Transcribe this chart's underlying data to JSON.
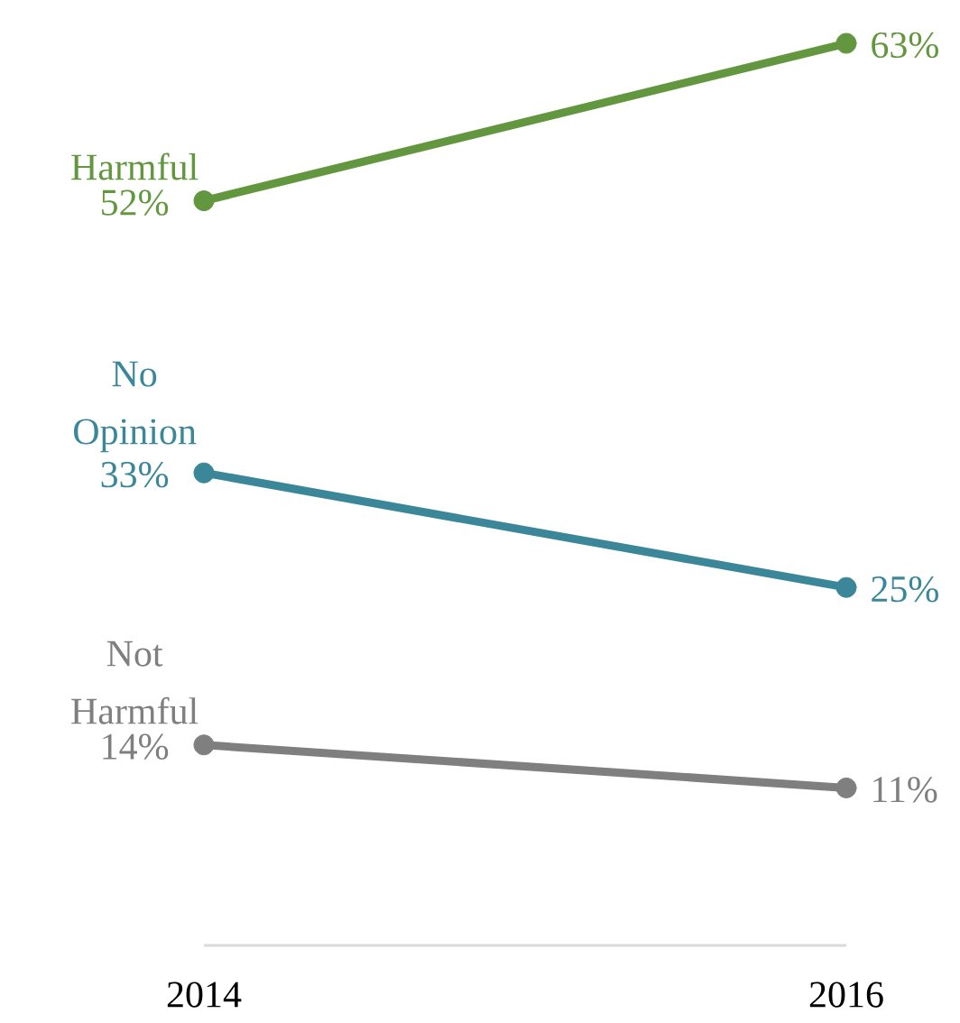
{
  "chart_data": {
    "type": "line",
    "categories": [
      "2014",
      "2016"
    ],
    "series": [
      {
        "name": "Harmful",
        "color": "#63973f",
        "values": [
          52,
          63
        ],
        "value_labels": [
          "52%",
          "63%"
        ]
      },
      {
        "name": "No Opinion",
        "color": "#3b8799",
        "values": [
          33,
          25
        ],
        "value_labels": [
          "33%",
          "25%"
        ]
      },
      {
        "name": "Not Harmful",
        "color": "#7f7f7f",
        "values": [
          14,
          11
        ],
        "value_labels": [
          "14%",
          "11%"
        ]
      }
    ],
    "legend": false,
    "grid": false,
    "marker": "circle",
    "tick_labels": "x"
  }
}
